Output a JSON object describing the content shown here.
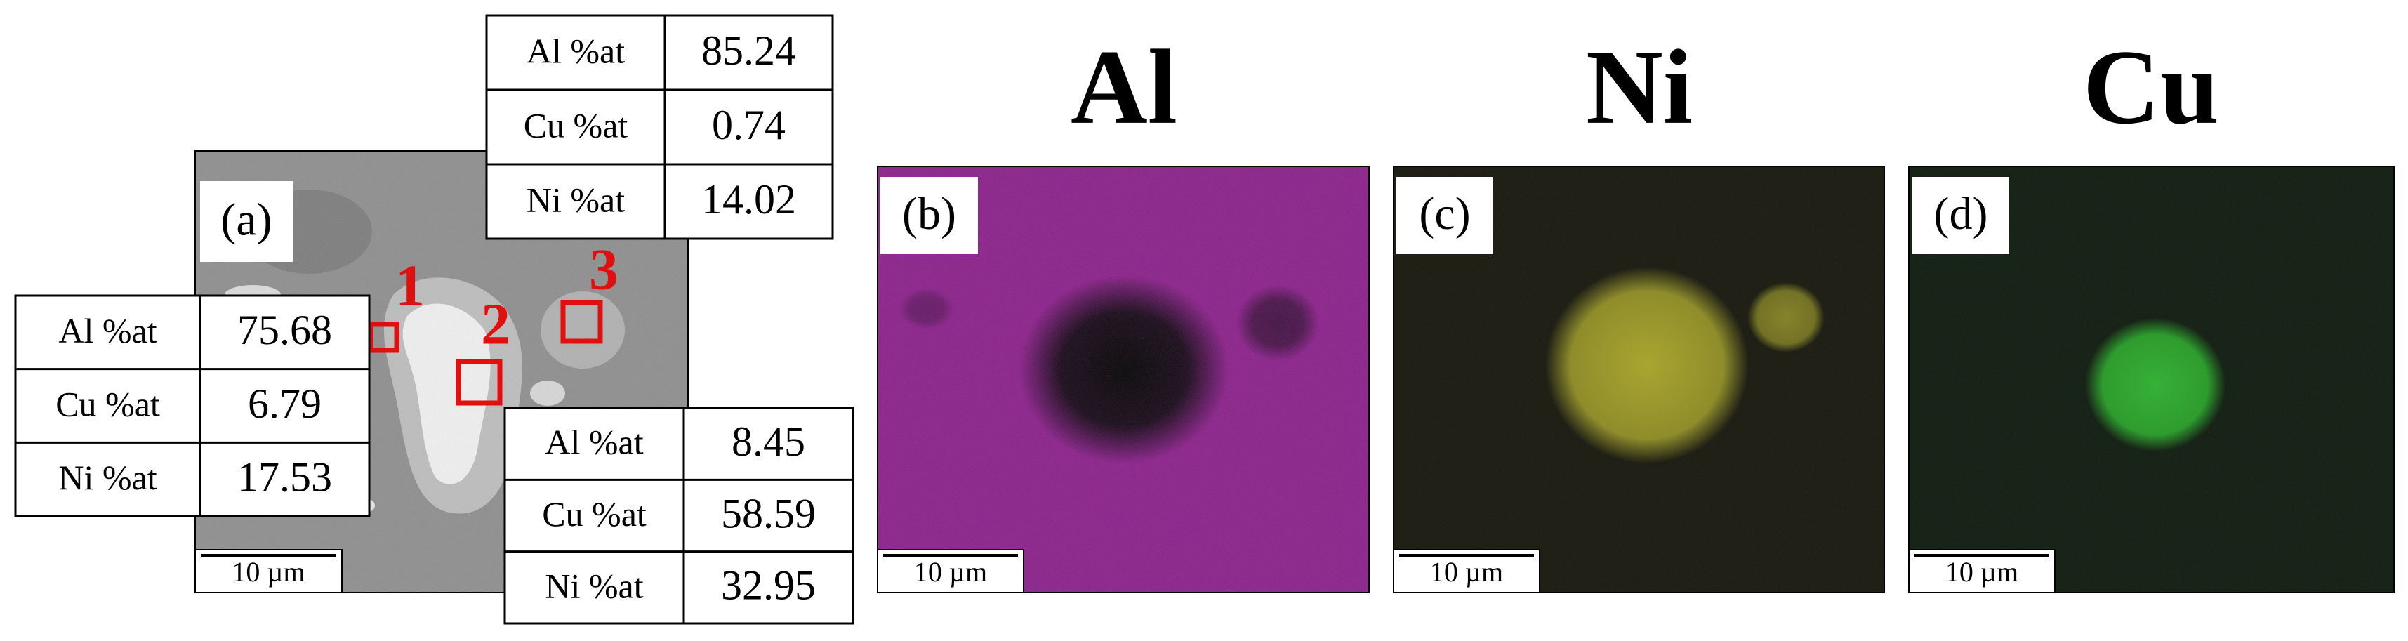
{
  "panels": [
    {
      "label": "(a)",
      "scale_bar": "10 µm"
    },
    {
      "label": "(b)",
      "title": "Al",
      "scale_bar": "10 µm"
    },
    {
      "label": "(c)",
      "title": "Ni",
      "scale_bar": "10 µm"
    },
    {
      "label": "(d)",
      "title": "Cu",
      "scale_bar": "10 µm"
    }
  ],
  "regions": [
    "1",
    "2",
    "3"
  ],
  "tables": [
    {
      "rows": [
        [
          "Al %at",
          75.68
        ],
        [
          "Cu %at",
          6.79
        ],
        [
          "Ni %at",
          17.53
        ]
      ]
    },
    {
      "rows": [
        [
          "Al %at",
          8.45
        ],
        [
          "Cu %at",
          58.59
        ],
        [
          "Ni %at",
          32.95
        ]
      ]
    },
    {
      "rows": [
        [
          "Al %at",
          85.24
        ],
        [
          "Cu %at",
          0.74
        ],
        [
          "Ni %at",
          14.02
        ]
      ]
    }
  ]
}
